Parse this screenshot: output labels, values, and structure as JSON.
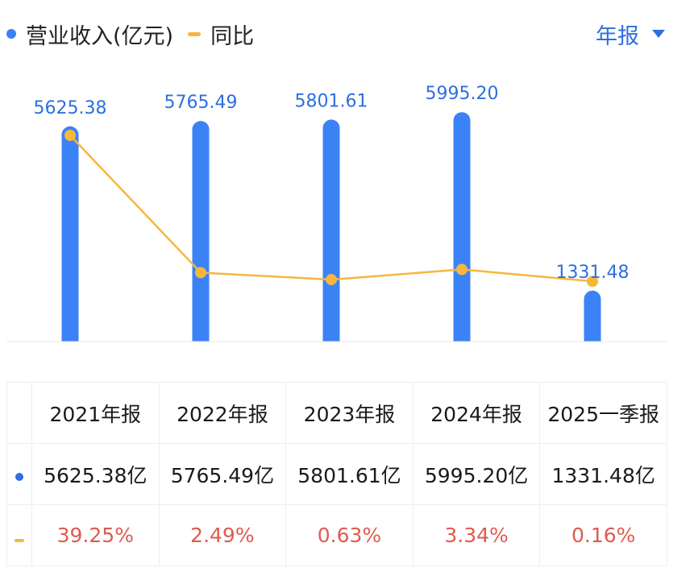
{
  "legend": {
    "revenue_label": "营业收入(亿元)",
    "yoy_label": "同比",
    "revenue_color": "#3b82f6",
    "yoy_color": "#f6b73c"
  },
  "period_selector": {
    "label": "年报"
  },
  "chart_data": {
    "type": "bar",
    "categories": [
      "2021年报",
      "2022年报",
      "2023年报",
      "2024年报",
      "2025一季报"
    ],
    "series": [
      {
        "name": "营业收入(亿元)",
        "type": "bar",
        "values": [
          5625.38,
          5765.49,
          5801.61,
          5995.2,
          1331.48
        ]
      },
      {
        "name": "同比",
        "type": "line",
        "unit": "%",
        "values": [
          39.25,
          2.49,
          0.63,
          3.34,
          0.16
        ]
      }
    ],
    "bar_labels": [
      "5625.38",
      "5765.49",
      "5801.61",
      "5995.20",
      "1331.48"
    ]
  },
  "table": {
    "headers": [
      "2021年报",
      "2022年报",
      "2023年报",
      "2024年报",
      "2025一季报"
    ],
    "revenue_row": [
      "5625.38亿",
      "5765.49亿",
      "5801.61亿",
      "5995.20亿",
      "1331.48亿"
    ],
    "yoy_row": [
      "39.25%",
      "2.49%",
      "0.63%",
      "3.34%",
      "0.16%"
    ]
  }
}
